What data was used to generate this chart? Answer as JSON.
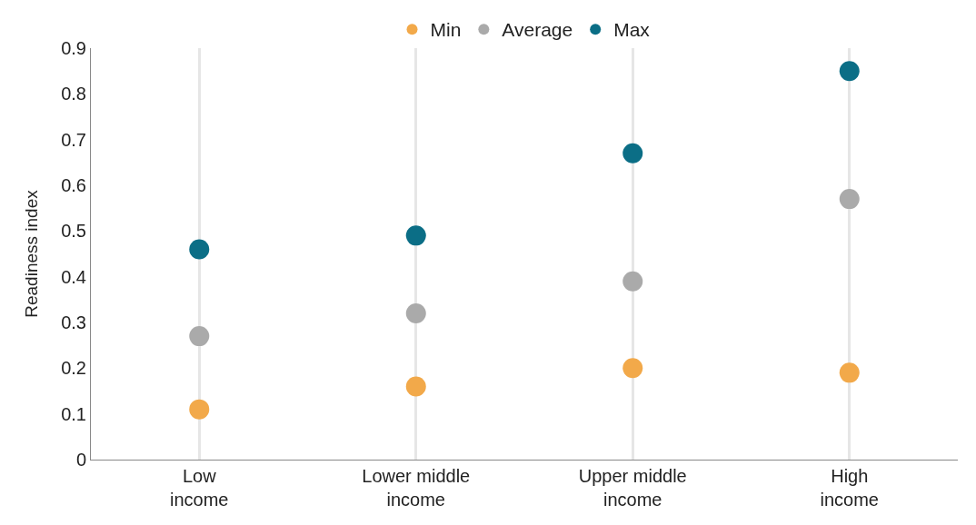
{
  "chart_data": {
    "type": "scatter",
    "ylabel": "Readiness index",
    "categories": [
      "Low\nincome",
      "Lower middle\nincome",
      "Upper middle\nincome",
      "High\nincome"
    ],
    "series": [
      {
        "name": "Min",
        "color": "#f2a94a",
        "values": [
          0.11,
          0.16,
          0.2,
          0.19
        ]
      },
      {
        "name": "Average",
        "color": "#aaaaaa",
        "values": [
          0.27,
          0.32,
          0.39,
          0.57
        ]
      },
      {
        "name": "Max",
        "color": "#0b6e86",
        "values": [
          0.46,
          0.49,
          0.67,
          0.85
        ]
      }
    ],
    "ylim": [
      0,
      0.9
    ],
    "yticks": [
      0,
      0.1,
      0.2,
      0.3,
      0.4,
      0.5,
      0.6,
      0.7,
      0.8,
      0.9
    ],
    "grid": "x",
    "legend": "top",
    "marker": "circle"
  }
}
